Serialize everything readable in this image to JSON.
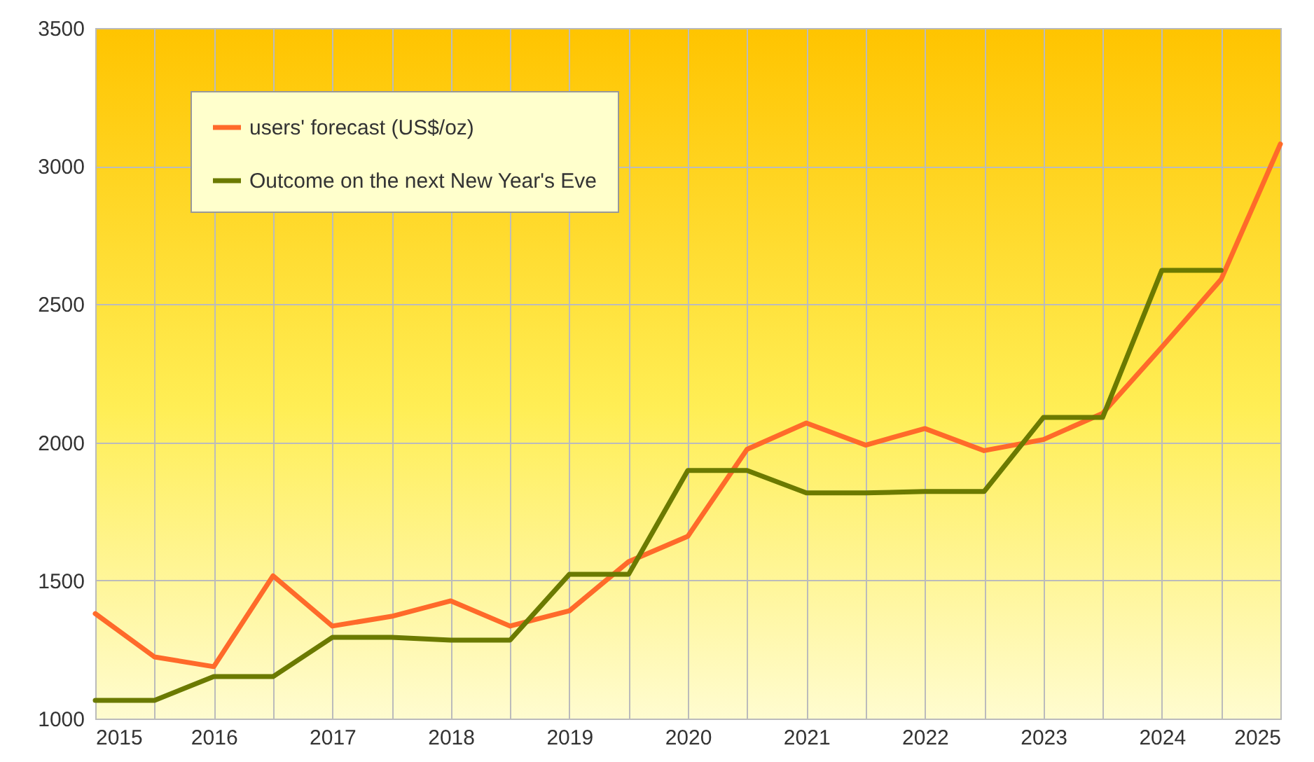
{
  "chart_data": {
    "type": "line",
    "x": [
      2015,
      2015.5,
      2016,
      2016.5,
      2017,
      2017.5,
      2018,
      2018.5,
      2019,
      2019.5,
      2020,
      2020.5,
      2021,
      2021.5,
      2022,
      2022.5,
      2023,
      2023.5,
      2024,
      2024.5,
      2025
    ],
    "series": [
      {
        "name": "users' forecast (US$/oz)",
        "color": "#ff6a2a",
        "values": [
          1380,
          1223,
          1188,
          1517,
          1335,
          1370,
          1426,
          1335,
          1390,
          1568,
          1660,
          1975,
          2070,
          1990,
          2050,
          1970,
          2010,
          2105,
          2345,
          2590,
          3080
        ]
      },
      {
        "name": "Outcome on the next New Year's Eve",
        "color": "#6b7a00",
        "values": [
          1066,
          1066,
          1152,
          1152,
          1294,
          1294,
          1284,
          1284,
          1522,
          1522,
          1898,
          1898,
          1817,
          1817,
          1822,
          1822,
          2090,
          2090,
          2623,
          2623,
          null
        ]
      }
    ],
    "xlim": [
      2015,
      2025
    ],
    "xticks": [
      2015,
      {
        "value": 2015.5,
        "label": null
      },
      2016,
      {
        "value": 2016.5,
        "label": null
      },
      2017,
      {
        "value": 2017.5,
        "label": null
      },
      2018,
      {
        "value": 2018.5,
        "label": null
      },
      2019,
      {
        "value": 2019.5,
        "label": null
      },
      2020,
      {
        "value": 2020.5,
        "label": null
      },
      2021,
      {
        "value": 2021.5,
        "label": null
      },
      2022,
      {
        "value": 2022.5,
        "label": null
      },
      2023,
      {
        "value": 2023.5,
        "label": null
      },
      2024,
      {
        "value": 2024.5,
        "label": null
      },
      2025
    ],
    "ylim": [
      1000,
      3500
    ],
    "yticks": [
      1000,
      1500,
      2000,
      2500,
      3000,
      3500
    ],
    "grid": true,
    "legend": "top left",
    "marker": "none",
    "line_style": "solid"
  }
}
